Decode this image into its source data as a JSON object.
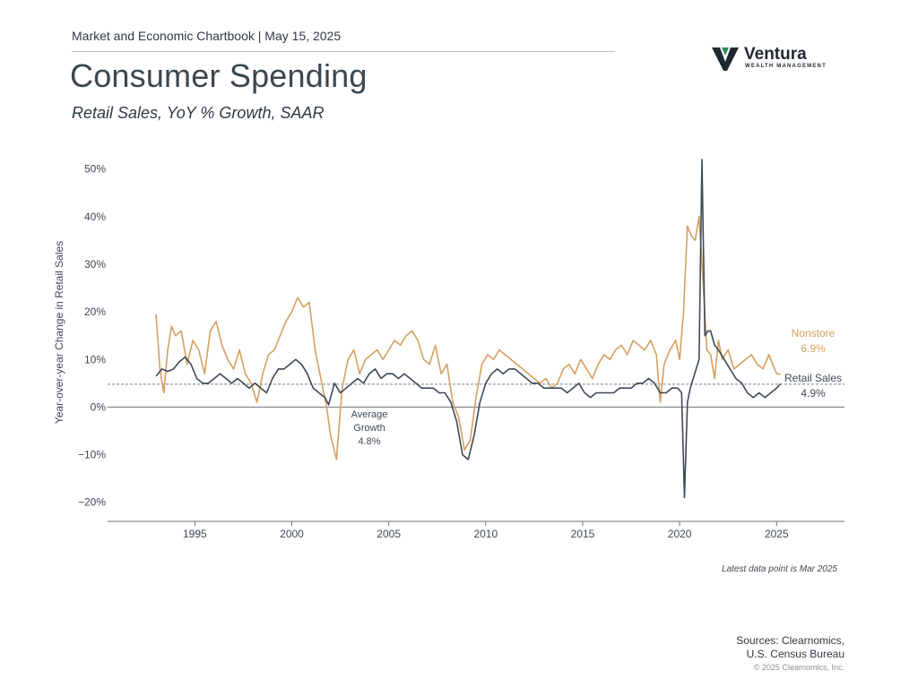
{
  "header": {
    "line": "Market and Economic Chartbook | May 15, 2025",
    "title": "Consumer Spending",
    "subtitle": "Retail Sales, YoY % Growth, SAAR"
  },
  "logo": {
    "name": "Ventura",
    "tagline": "WEALTH MANAGEMENT",
    "icon": "ventura-v-logo",
    "color_dark": "#1f2a30",
    "color_accent": "#2e8b57"
  },
  "footer": {
    "latest": "Latest data point is Mar 2025",
    "sources_line1": "Sources: Clearnomics,",
    "sources_line2": "U.S. Census Bureau",
    "copyright": "© 2025 Clearnomics, Inc."
  },
  "chart_data": {
    "type": "line",
    "title": "",
    "xlabel": "",
    "ylabel": "Year-over-year Change in Retail Sales",
    "xlim": [
      1990.5,
      2028.5
    ],
    "ylim": [
      -24,
      52
    ],
    "x_ticks": [
      1995,
      2000,
      2005,
      2010,
      2015,
      2020,
      2025
    ],
    "y_ticks": [
      -20,
      -10,
      0,
      10,
      20,
      30,
      40,
      50
    ],
    "y_tick_labels": [
      "−20%",
      "−10%",
      "0%",
      "10%",
      "20%",
      "30%",
      "40%",
      "50%"
    ],
    "grid": false,
    "zero_line": true,
    "average_line": {
      "value": 4.8,
      "label_line1": "Average",
      "label_line2": "Growth",
      "label_value": "4.8%"
    },
    "series": [
      {
        "name": "Nonstore",
        "end_label": "6.9%",
        "color": "#d4a060",
        "x": [
          1993.0,
          1993.2,
          1993.4,
          1993.6,
          1993.8,
          1994.0,
          1994.3,
          1994.6,
          1994.9,
          1995.2,
          1995.5,
          1995.8,
          1996.1,
          1996.4,
          1996.7,
          1997.0,
          1997.3,
          1997.6,
          1997.9,
          1998.2,
          1998.5,
          1998.8,
          1999.1,
          1999.4,
          1999.7,
          2000.0,
          2000.3,
          2000.6,
          2000.9,
          2001.2,
          2001.5,
          2001.8,
          2002.0,
          2002.3,
          2002.6,
          2002.9,
          2003.2,
          2003.5,
          2003.8,
          2004.1,
          2004.4,
          2004.7,
          2005.0,
          2005.3,
          2005.6,
          2005.9,
          2006.2,
          2006.5,
          2006.8,
          2007.1,
          2007.4,
          2007.7,
          2008.0,
          2008.3,
          2008.6,
          2008.9,
          2009.2,
          2009.5,
          2009.8,
          2010.1,
          2010.4,
          2010.7,
          2011.0,
          2011.3,
          2011.6,
          2011.9,
          2012.2,
          2012.5,
          2012.8,
          2013.1,
          2013.4,
          2013.7,
          2014.0,
          2014.3,
          2014.6,
          2014.9,
          2015.2,
          2015.5,
          2015.8,
          2016.1,
          2016.4,
          2016.7,
          2017.0,
          2017.3,
          2017.6,
          2017.9,
          2018.2,
          2018.5,
          2018.8,
          2019.0,
          2019.2,
          2019.5,
          2019.8,
          2020.0,
          2020.2,
          2020.4,
          2020.6,
          2020.8,
          2021.0,
          2021.2,
          2021.4,
          2021.6,
          2021.8,
          2022.0,
          2022.2,
          2022.5,
          2022.8,
          2023.1,
          2023.4,
          2023.7,
          2024.0,
          2024.3,
          2024.6,
          2024.9,
          2025.0,
          2025.2
        ],
        "y": [
          19.5,
          8,
          3,
          12,
          17,
          15,
          16,
          9,
          14,
          12,
          7,
          16,
          18,
          13,
          10,
          8,
          12,
          7,
          5,
          1,
          7,
          11,
          12,
          15,
          18,
          20,
          23,
          21,
          22,
          12,
          6,
          0,
          -6,
          -11,
          4,
          10,
          12,
          7,
          10,
          11,
          12,
          10,
          12,
          14,
          13,
          15,
          16,
          14,
          10,
          9,
          13,
          7,
          9,
          1,
          -2,
          -9,
          -7,
          2,
          9,
          11,
          10,
          12,
          11,
          10,
          9,
          8,
          7,
          6,
          5,
          6,
          4,
          5,
          8,
          9,
          7,
          10,
          8,
          6,
          9,
          11,
          10,
          12,
          13,
          11,
          14,
          13,
          12,
          14,
          11,
          1,
          9,
          12,
          14,
          10,
          20,
          38,
          36,
          35,
          40,
          27,
          12,
          11,
          6,
          14,
          10,
          12,
          8,
          9,
          10,
          11,
          9,
          8,
          11,
          8,
          7,
          6.9
        ]
      },
      {
        "name": "Retail Sales",
        "end_label": "4.9%",
        "color": "#3e4a56",
        "x": [
          1993.0,
          1993.3,
          1993.6,
          1993.9,
          1994.2,
          1994.5,
          1994.8,
          1995.1,
          1995.4,
          1995.7,
          1996.0,
          1996.3,
          1996.6,
          1996.9,
          1997.2,
          1997.5,
          1997.8,
          1998.1,
          1998.4,
          1998.7,
          1999.0,
          1999.3,
          1999.6,
          1999.9,
          2000.2,
          2000.5,
          2000.8,
          2001.1,
          2001.4,
          2001.7,
          2001.9,
          2002.2,
          2002.5,
          2002.8,
          2003.1,
          2003.4,
          2003.7,
          2004.0,
          2004.3,
          2004.6,
          2004.9,
          2005.2,
          2005.5,
          2005.8,
          2006.1,
          2006.4,
          2006.7,
          2007.0,
          2007.3,
          2007.6,
          2007.9,
          2008.2,
          2008.5,
          2008.8,
          2009.1,
          2009.4,
          2009.7,
          2010.0,
          2010.3,
          2010.6,
          2010.9,
          2011.2,
          2011.5,
          2011.8,
          2012.1,
          2012.4,
          2012.7,
          2013.0,
          2013.3,
          2013.6,
          2013.9,
          2014.2,
          2014.5,
          2014.8,
          2015.1,
          2015.4,
          2015.7,
          2016.0,
          2016.3,
          2016.6,
          2016.9,
          2017.2,
          2017.5,
          2017.8,
          2018.1,
          2018.4,
          2018.7,
          2019.0,
          2019.3,
          2019.6,
          2019.9,
          2020.1,
          2020.25,
          2020.4,
          2020.55,
          2020.7,
          2020.85,
          2021.0,
          2021.15,
          2021.3,
          2021.45,
          2021.6,
          2021.8,
          2022.0,
          2022.3,
          2022.6,
          2022.9,
          2023.2,
          2023.5,
          2023.8,
          2024.1,
          2024.4,
          2024.7,
          2025.0,
          2025.2
        ],
        "y": [
          6.5,
          8,
          7.5,
          8,
          9.5,
          10.5,
          9,
          6,
          5,
          5,
          6,
          7,
          6,
          5,
          6,
          5,
          4,
          5,
          4,
          3,
          6,
          8,
          8,
          9,
          10,
          9,
          7,
          4,
          3,
          2,
          0.5,
          5,
          3,
          4,
          5,
          6,
          5,
          7,
          8,
          6,
          7,
          7,
          6,
          7,
          6,
          5,
          4,
          4,
          4,
          3,
          3,
          1,
          -3,
          -10,
          -11,
          -6,
          1,
          5,
          7,
          8,
          7,
          8,
          8,
          7,
          6,
          5,
          5,
          4,
          4,
          4,
          4,
          3,
          4,
          5,
          3,
          2,
          3,
          3,
          3,
          3,
          4,
          4,
          4,
          5,
          5,
          6,
          5,
          3,
          3,
          4,
          4,
          3,
          -19,
          1,
          4,
          6,
          8,
          10,
          52,
          15,
          16,
          16,
          13,
          12,
          10,
          8,
          6,
          5,
          3,
          2,
          3,
          2,
          3,
          4,
          4.9
        ]
      }
    ]
  }
}
